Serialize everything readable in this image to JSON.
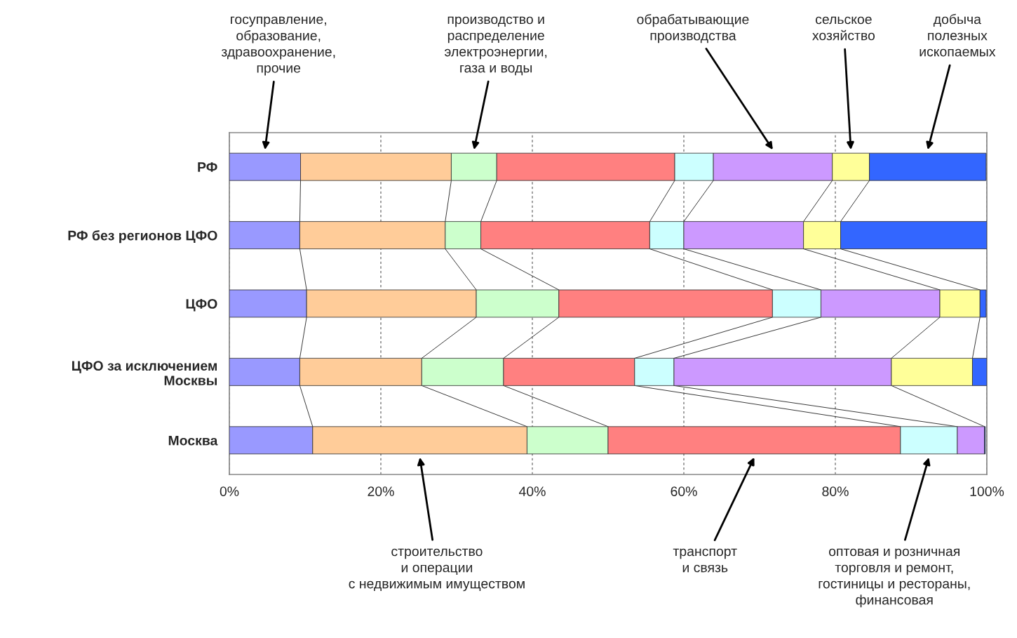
{
  "chart_data": {
    "type": "bar",
    "orientation": "horizontal",
    "stacked": true,
    "categories": [
      "РФ",
      "РФ без регионов ЦФО",
      "ЦФО",
      "ЦФО за исключением\nМосквы",
      "Москва"
    ],
    "series": [
      {
        "name": "госуправление,\nобразование,\nздравоохранение,\nпрочие",
        "color": "#9999ff",
        "values": [
          9.4,
          9.3,
          10.2,
          9.3,
          11.0
        ]
      },
      {
        "name": "строительство\nи операции\nс недвижимым имуществом",
        "color": "#ffcc99",
        "values": [
          19.9,
          19.2,
          22.4,
          16.1,
          28.3
        ]
      },
      {
        "name": "производство и\nраспределение\nэлектроэнергии,\nгаза и воды",
        "color": "#ccffcc",
        "values": [
          6.0,
          4.7,
          10.9,
          10.8,
          10.7
        ]
      },
      {
        "name": "транспорт\nи связь",
        "color": "#ff8080",
        "values": [
          23.5,
          22.3,
          28.2,
          17.3,
          38.6
        ]
      },
      {
        "name": "оптовая и розничная\nторговля и ремонт,\nгостиницы и рестораны,\nфинансовая",
        "color": "#ccffff",
        "values": [
          5.1,
          4.5,
          6.4,
          5.2,
          7.5
        ]
      },
      {
        "name": "обрабатывающие\nпроизводства",
        "color": "#cc99ff",
        "values": [
          15.7,
          15.8,
          15.7,
          28.7,
          3.6
        ]
      },
      {
        "name": "сельское\nхозяйство",
        "color": "#ffff99",
        "values": [
          4.9,
          4.9,
          5.3,
          10.7,
          null
        ]
      },
      {
        "name": "добыча\nполезных\nископаемых",
        "color": "#3366ff",
        "values": [
          15.4,
          19.3,
          0.8,
          1.9,
          0.1
        ]
      }
    ],
    "xlim": [
      0,
      100
    ],
    "xticks": [
      {
        "value": 0,
        "label": "0%"
      },
      {
        "value": 20,
        "label": "20%"
      },
      {
        "value": 40,
        "label": "40%"
      },
      {
        "value": 60,
        "label": "60%"
      },
      {
        "value": 80,
        "label": "80%"
      },
      {
        "value": 100,
        "label": "100%"
      }
    ],
    "grid": "x"
  }
}
